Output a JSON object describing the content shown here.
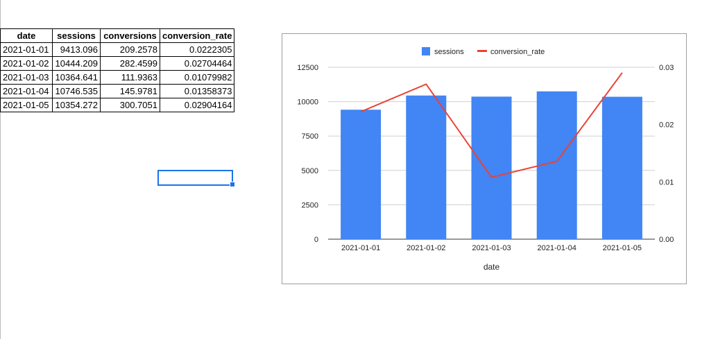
{
  "sheet": {
    "headers": [
      "date",
      "sessions",
      "conversions",
      "conversion_rate"
    ],
    "rows": [
      [
        "2021-01-01",
        "9413.096",
        "209.2578",
        "0.0222305"
      ],
      [
        "2021-01-02",
        "10444.209",
        "282.4599",
        "0.02704464"
      ],
      [
        "2021-01-03",
        "10364.641",
        "111.9363",
        "0.01079982"
      ],
      [
        "2021-01-04",
        "10746.535",
        "145.9781",
        "0.01358373"
      ],
      [
        "2021-01-05",
        "10354.272",
        "300.7051",
        "0.02904164"
      ]
    ]
  },
  "chart_data": {
    "type": "bar",
    "categories": [
      "2021-01-01",
      "2021-01-02",
      "2021-01-03",
      "2021-01-04",
      "2021-01-05"
    ],
    "xlabel": "date",
    "series": [
      {
        "name": "sessions",
        "type": "bar",
        "axis": "left",
        "color": "#4285f4",
        "values": [
          9413.096,
          10444.209,
          10364.641,
          10746.535,
          10354.272
        ]
      },
      {
        "name": "conversion_rate",
        "type": "line",
        "axis": "right",
        "color": "#ea4335",
        "values": [
          0.0222305,
          0.02704464,
          0.01079982,
          0.01358373,
          0.02904164
        ]
      }
    ],
    "left_axis": {
      "ticks": [
        "0",
        "2500",
        "5000",
        "7500",
        "10000",
        "12500"
      ],
      "ylim": [
        0,
        12500
      ]
    },
    "right_axis": {
      "ticks": [
        "0.00",
        "0.01",
        "0.02",
        "0.03"
      ],
      "ylim": [
        0,
        0.03
      ]
    },
    "legend_position": "top",
    "grid": true
  }
}
